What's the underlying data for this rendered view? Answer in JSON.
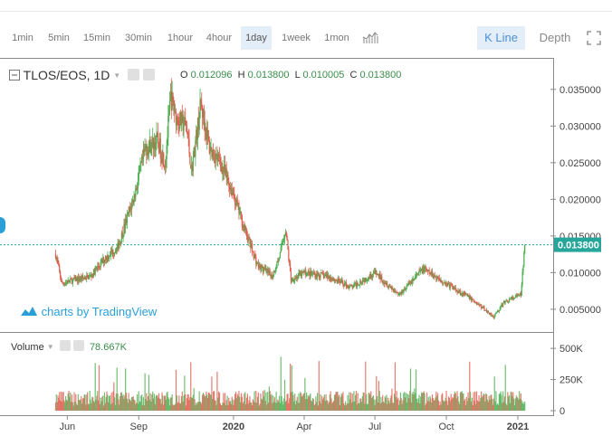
{
  "toolbar": {
    "timeframes": [
      "1min",
      "5min",
      "15min",
      "30min",
      "1hour",
      "4hour",
      "1day",
      "1week",
      "1mon"
    ],
    "active_timeframe": "1day",
    "kline_label": "K Line",
    "depth_label": "Depth"
  },
  "legend": {
    "symbol": "TLOS/EOS, 1D",
    "o_label": "O",
    "o_value": "0.012096",
    "h_label": "H",
    "h_value": "0.013800",
    "l_label": "L",
    "l_value": "0.010005",
    "c_label": "C",
    "c_value": "0.013800"
  },
  "volume_legend": {
    "label": "Volume",
    "value": "78.667K"
  },
  "brand": "charts by TradingView",
  "colors": {
    "up": "#4caf50",
    "down": "#e05c4c",
    "accent": "#2a9fd8",
    "last_price": "#26a69a"
  },
  "chart_data": {
    "type": "candlestick",
    "symbol": "TLOS/EOS",
    "interval": "1D",
    "x_tick_labels": [
      "Jun",
      "Sep",
      "2020",
      "Apr",
      "Jul",
      "Oct",
      "2021"
    ],
    "y_tick_labels": [
      "0.005000",
      "0.010000",
      "0.015000",
      "0.020000",
      "0.025000",
      "0.030000",
      "0.035000"
    ],
    "ylim": [
      0.0019,
      0.0388
    ],
    "last_price": 0.0138,
    "last_price_label": "0.013800",
    "volume_tick_labels": [
      "0",
      "250K",
      "500K"
    ],
    "volume_ylim": [
      0,
      610000
    ],
    "price_path": [
      [
        "2019-05-17",
        0.0125
      ],
      [
        "2019-05-25",
        0.0085
      ],
      [
        "2019-06-10",
        0.009
      ],
      [
        "2019-07-01",
        0.0095
      ],
      [
        "2019-07-20",
        0.012
      ],
      [
        "2019-08-05",
        0.0135
      ],
      [
        "2019-08-25",
        0.02
      ],
      [
        "2019-09-10",
        0.027
      ],
      [
        "2019-09-25",
        0.028
      ],
      [
        "2019-10-05",
        0.025
      ],
      [
        "2019-10-12",
        0.034
      ],
      [
        "2019-10-20",
        0.031
      ],
      [
        "2019-11-01",
        0.03
      ],
      [
        "2019-11-08",
        0.024
      ],
      [
        "2019-11-20",
        0.033
      ],
      [
        "2019-12-01",
        0.027
      ],
      [
        "2019-12-15",
        0.025
      ],
      [
        "2019-12-31",
        0.021
      ],
      [
        "2020-01-15",
        0.016
      ],
      [
        "2020-02-01",
        0.011
      ],
      [
        "2020-02-20",
        0.0095
      ],
      [
        "2020-03-01",
        0.0125
      ],
      [
        "2020-03-08",
        0.016
      ],
      [
        "2020-03-15",
        0.009
      ],
      [
        "2020-04-01",
        0.01
      ],
      [
        "2020-05-01",
        0.0095
      ],
      [
        "2020-06-01",
        0.008
      ],
      [
        "2020-07-01",
        0.01
      ],
      [
        "2020-08-01",
        0.007
      ],
      [
        "2020-09-01",
        0.0105
      ],
      [
        "2020-10-01",
        0.0085
      ],
      [
        "2020-11-01",
        0.0065
      ],
      [
        "2020-12-01",
        0.004
      ],
      [
        "2020-12-15",
        0.006
      ],
      [
        "2021-01-05",
        0.007
      ],
      [
        "2021-01-10",
        0.0138
      ]
    ]
  }
}
